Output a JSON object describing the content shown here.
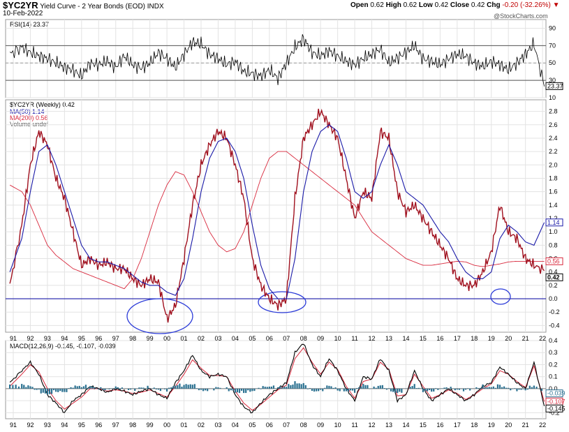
{
  "header": {
    "symbol": "$YC2YR",
    "description": "Yield Curve - 2 Year Bonds (EOD)",
    "index_tag": "INDX",
    "date": "10-Feb-2022",
    "open_label": "Open",
    "open": "0.62",
    "high_label": "High",
    "high": "0.62",
    "low_label": "Low",
    "low": "0.42",
    "close_label": "Close",
    "close": "0.42",
    "chg_label": "Chg",
    "chg": "-0.20 (-32.26%)",
    "watermark": "@StockCharts.com"
  },
  "colors": {
    "price": "#a0101e",
    "ma50": "#1a1aa8",
    "ma200": "#d8283c",
    "rsi": "#000000",
    "rsi_fill": "#4a7a5a",
    "macd_hist": "#2a7090",
    "signal": "#d8283c",
    "grid": "#e3e3e3",
    "zero_line": "#1a1aa8"
  },
  "chart_data": [
    {
      "type": "line",
      "name": "rsi_panel",
      "legend": "RSI(14) 23.37",
      "ylim": [
        10,
        100
      ],
      "y_ticks": [
        "90",
        "70",
        "50",
        "30",
        "10"
      ],
      "reference_lines": [
        70,
        30
      ],
      "last_label": "23.37",
      "x": [
        1990.8,
        1991.5,
        1992.0,
        1992.5,
        1993.0,
        1993.5,
        1994.0,
        1994.5,
        1995.0,
        1995.5,
        1996.0,
        1996.5,
        1997.0,
        1997.5,
        1998.0,
        1998.5,
        1999.0,
        1999.5,
        2000.0,
        2000.5,
        2001.0,
        2001.5,
        2002.0,
        2002.5,
        2003.0,
        2003.5,
        2004.0,
        2004.5,
        2005.0,
        2005.5,
        2006.0,
        2006.5,
        2007.0,
        2007.5,
        2008.0,
        2008.5,
        2009.0,
        2009.5,
        2010.0,
        2010.5,
        2011.0,
        2011.5,
        2012.0,
        2012.5,
        2013.0,
        2013.5,
        2014.0,
        2014.5,
        2015.0,
        2015.5,
        2016.0,
        2016.5,
        2017.0,
        2017.5,
        2018.0,
        2018.5,
        2019.0,
        2019.5,
        2020.0,
        2020.5,
        2021.0,
        2021.5,
        2022.1
      ],
      "values": [
        60,
        68,
        62,
        58,
        55,
        50,
        45,
        42,
        35,
        50,
        48,
        52,
        45,
        58,
        48,
        44,
        50,
        62,
        55,
        45,
        60,
        74,
        72,
        60,
        55,
        48,
        52,
        40,
        38,
        35,
        42,
        32,
        50,
        68,
        78,
        62,
        58,
        64,
        58,
        52,
        48,
        55,
        60,
        66,
        50,
        56,
        62,
        70,
        55,
        52,
        48,
        55,
        60,
        58,
        50,
        46,
        52,
        48,
        42,
        50,
        60,
        72,
        23
      ]
    },
    {
      "type": "line",
      "name": "price_panel",
      "title": "$YC2YR (Weekly) 0.42",
      "legend": [
        "$YC2YR (Weekly) 0.42",
        "MA(50) 1.14",
        "MA(200) 0.56",
        "Volume undef"
      ],
      "ylim": [
        -0.5,
        2.9
      ],
      "y_ticks": [
        "2.8",
        "2.6",
        "2.4",
        "2.2",
        "2.0",
        "1.8",
        "1.6",
        "1.4",
        "1.2",
        "1.0",
        "0.8",
        "0.6",
        "0.4",
        "0.2",
        "0.0",
        "-0.2",
        "-0.4"
      ],
      "x_ticks": [
        "91",
        "92",
        "93",
        "94",
        "95",
        "96",
        "97",
        "98",
        "99",
        "00",
        "01",
        "02",
        "03",
        "04",
        "05",
        "06",
        "07",
        "08",
        "09",
        "10",
        "11",
        "12",
        "13",
        "14",
        "15",
        "16",
        "17",
        "18",
        "19",
        "20",
        "21",
        "22"
      ],
      "value_labels": [
        "1.14",
        "0.56",
        "0.42"
      ],
      "x": [
        1990.8,
        1991.5,
        1992.0,
        1992.5,
        1993.0,
        1993.5,
        1994.0,
        1994.5,
        1995.0,
        1995.5,
        1996.0,
        1996.5,
        1997.0,
        1997.5,
        1998.0,
        1998.5,
        1999.0,
        1999.5,
        2000.0,
        2000.5,
        2001.0,
        2001.5,
        2002.0,
        2002.5,
        2003.0,
        2003.5,
        2004.0,
        2004.5,
        2005.0,
        2005.5,
        2006.0,
        2006.5,
        2007.0,
        2007.5,
        2008.0,
        2008.5,
        2009.0,
        2009.5,
        2010.0,
        2010.5,
        2011.0,
        2011.5,
        2012.0,
        2012.5,
        2013.0,
        2013.5,
        2014.0,
        2014.5,
        2015.0,
        2015.5,
        2016.0,
        2016.5,
        2017.0,
        2017.5,
        2018.0,
        2018.5,
        2019.0,
        2019.5,
        2020.0,
        2020.5,
        2021.0,
        2021.5,
        2022.1
      ],
      "series": [
        {
          "name": "$YC2YR",
          "values": [
            0.2,
            1.1,
            2.0,
            2.5,
            2.3,
            1.8,
            1.5,
            1.0,
            0.5,
            0.6,
            0.5,
            0.55,
            0.45,
            0.45,
            0.3,
            0.2,
            0.3,
            0.25,
            -0.3,
            -0.1,
            0.6,
            1.4,
            2.0,
            2.3,
            2.5,
            2.4,
            2.0,
            1.5,
            0.6,
            0.2,
            0.0,
            -0.1,
            0.0,
            1.5,
            2.4,
            2.6,
            2.8,
            2.6,
            2.4,
            1.8,
            1.2,
            1.6,
            1.5,
            2.5,
            2.4,
            1.6,
            1.3,
            1.4,
            1.2,
            1.0,
            0.8,
            0.6,
            0.3,
            0.2,
            0.2,
            0.4,
            0.7,
            1.4,
            1.0,
            0.9,
            0.6,
            0.5,
            0.42
          ]
        },
        {
          "name": "MA(50)",
          "values": [
            0.4,
            0.9,
            1.6,
            2.2,
            2.3,
            2.0,
            1.6,
            1.2,
            0.8,
            0.6,
            0.55,
            0.55,
            0.5,
            0.45,
            0.35,
            0.25,
            0.2,
            0.2,
            0.1,
            0.05,
            0.3,
            0.9,
            1.6,
            2.1,
            2.35,
            2.4,
            2.2,
            1.8,
            1.1,
            0.5,
            0.15,
            0.0,
            0.0,
            0.6,
            1.6,
            2.2,
            2.5,
            2.6,
            2.5,
            2.1,
            1.6,
            1.5,
            1.6,
            2.0,
            2.3,
            2.0,
            1.6,
            1.5,
            1.4,
            1.2,
            1.0,
            0.85,
            0.6,
            0.4,
            0.3,
            0.3,
            0.4,
            0.9,
            1.1,
            1.0,
            0.85,
            0.8,
            1.14
          ]
        },
        {
          "name": "MA(200)",
          "values": [
            1.7,
            1.6,
            1.4,
            1.1,
            0.8,
            0.65,
            0.55,
            0.45,
            0.4,
            0.35,
            0.3,
            0.25,
            0.2,
            0.15,
            0.3,
            0.6,
            1.0,
            1.4,
            1.7,
            1.9,
            1.85,
            1.6,
            1.3,
            1.0,
            0.8,
            0.7,
            0.75,
            1.0,
            1.4,
            1.8,
            2.1,
            2.2,
            2.2,
            2.1,
            2.0,
            1.9,
            1.8,
            1.7,
            1.6,
            1.5,
            1.4,
            1.2,
            1.0,
            0.9,
            0.8,
            0.7,
            0.6,
            0.55,
            0.5,
            0.5,
            0.52,
            0.54,
            0.56,
            0.55,
            0.5,
            0.48,
            0.5,
            0.52,
            0.55,
            0.56,
            0.56,
            0.56,
            0.56
          ]
        }
      ]
    },
    {
      "type": "line",
      "name": "macd_panel",
      "legend": "MACD(12,26,9) -0.145, -0.107, -0.039",
      "ylim": [
        -0.25,
        0.4
      ],
      "y_ticks": [
        "0.4",
        "0.3",
        "0.2",
        "0.1",
        "0.0",
        "-0.1",
        "-0.2"
      ],
      "x_ticks": [
        "91",
        "92",
        "93",
        "94",
        "95",
        "96",
        "97",
        "98",
        "99",
        "00",
        "01",
        "02",
        "03",
        "04",
        "05",
        "06",
        "07",
        "08",
        "09",
        "10",
        "11",
        "12",
        "13",
        "14",
        "15",
        "16",
        "17",
        "18",
        "19",
        "20",
        "21",
        "22"
      ],
      "value_labels": [
        "-0.039",
        "-0.107",
        "-0.145"
      ],
      "x": [
        1990.8,
        1991.5,
        1992.0,
        1992.5,
        1993.0,
        1993.5,
        1994.0,
        1994.5,
        1995.0,
        1995.5,
        1996.0,
        1996.5,
        1997.0,
        1997.5,
        1998.0,
        1998.5,
        1999.0,
        1999.5,
        2000.0,
        2000.5,
        2001.0,
        2001.5,
        2002.0,
        2002.5,
        2003.0,
        2003.5,
        2004.0,
        2004.5,
        2005.0,
        2005.5,
        2006.0,
        2006.5,
        2007.0,
        2007.5,
        2008.0,
        2008.5,
        2009.0,
        2009.5,
        2010.0,
        2010.5,
        2011.0,
        2011.5,
        2012.0,
        2012.5,
        2013.0,
        2013.5,
        2014.0,
        2014.5,
        2015.0,
        2015.5,
        2016.0,
        2016.5,
        2017.0,
        2017.5,
        2018.0,
        2018.5,
        2019.0,
        2019.5,
        2020.0,
        2020.5,
        2021.0,
        2021.5,
        2022.1
      ],
      "series": [
        {
          "name": "MACD",
          "values": [
            0.05,
            0.15,
            0.22,
            0.12,
            -0.05,
            -0.12,
            -0.2,
            -0.1,
            -0.05,
            0.02,
            0.0,
            -0.03,
            0.0,
            -0.02,
            -0.05,
            -0.02,
            0.0,
            -0.05,
            -0.08,
            0.05,
            0.15,
            0.28,
            0.15,
            0.1,
            0.12,
            0.1,
            -0.05,
            -0.15,
            -0.2,
            -0.12,
            -0.05,
            0.0,
            0.05,
            0.3,
            0.38,
            0.2,
            0.1,
            0.25,
            0.15,
            0.0,
            -0.1,
            0.1,
            0.08,
            0.25,
            0.15,
            -0.1,
            -0.05,
            0.15,
            0.0,
            -0.1,
            -0.05,
            0.0,
            -0.05,
            -0.1,
            -0.05,
            0.02,
            0.05,
            0.18,
            0.12,
            0.05,
            0.0,
            0.22,
            -0.145
          ]
        },
        {
          "name": "Signal",
          "values": [
            0.02,
            0.12,
            0.2,
            0.14,
            0.0,
            -0.1,
            -0.17,
            -0.12,
            -0.07,
            0.0,
            0.0,
            -0.02,
            -0.01,
            -0.02,
            -0.04,
            -0.03,
            -0.01,
            -0.04,
            -0.07,
            0.02,
            0.12,
            0.24,
            0.17,
            0.11,
            0.11,
            0.1,
            -0.02,
            -0.12,
            -0.18,
            -0.13,
            -0.07,
            -0.01,
            0.03,
            0.25,
            0.34,
            0.22,
            0.12,
            0.22,
            0.16,
            0.02,
            -0.08,
            0.06,
            0.08,
            0.22,
            0.16,
            -0.06,
            -0.05,
            0.12,
            0.02,
            -0.08,
            -0.05,
            -0.01,
            -0.04,
            -0.09,
            -0.05,
            0.0,
            0.04,
            0.15,
            0.12,
            0.06,
            0.01,
            0.19,
            -0.107
          ]
        }
      ]
    }
  ]
}
